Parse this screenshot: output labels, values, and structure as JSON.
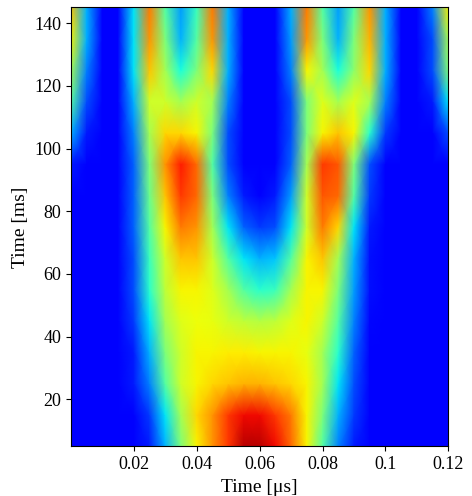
{
  "chart_data": {
    "type": "heatmap",
    "xlabel": "Time [μs]",
    "ylabel": "Time [ms]",
    "x": [
      0,
      0.005,
      0.01,
      0.015,
      0.02,
      0.025,
      0.03,
      0.035,
      0.04,
      0.045,
      0.05,
      0.055,
      0.06,
      0.065,
      0.07,
      0.075,
      0.08,
      0.085,
      0.09,
      0.095,
      0.1,
      0.105,
      0.11,
      0.115,
      0.12
    ],
    "y": [
      5,
      15,
      25,
      35,
      45,
      55,
      65,
      75,
      85,
      95,
      105,
      115,
      125,
      135,
      145
    ],
    "xlim": [
      0,
      0.12
    ],
    "ylim": [
      5,
      145
    ],
    "xticks": [
      0.02,
      0.04,
      0.06,
      0.08,
      0.1,
      0.12
    ],
    "yticks": [
      20,
      40,
      60,
      80,
      100,
      120,
      140
    ],
    "zlim": [
      0,
      1
    ],
    "cells": [
      [
        0.12,
        0.12,
        0.12,
        0.12,
        0.12,
        0.15,
        0.3,
        0.5,
        0.65,
        0.75,
        0.85,
        0.95,
        0.95,
        0.9,
        0.8,
        0.65,
        0.45,
        0.25,
        0.15,
        0.12,
        0.12,
        0.12,
        0.12,
        0.12,
        0.12
      ],
      [
        0.12,
        0.12,
        0.12,
        0.12,
        0.12,
        0.18,
        0.35,
        0.55,
        0.68,
        0.75,
        0.85,
        0.9,
        0.9,
        0.85,
        0.78,
        0.65,
        0.5,
        0.3,
        0.18,
        0.12,
        0.12,
        0.12,
        0.12,
        0.12,
        0.12
      ],
      [
        0.12,
        0.12,
        0.12,
        0.12,
        0.15,
        0.25,
        0.45,
        0.6,
        0.65,
        0.68,
        0.7,
        0.72,
        0.72,
        0.7,
        0.68,
        0.65,
        0.55,
        0.35,
        0.2,
        0.12,
        0.12,
        0.12,
        0.12,
        0.12,
        0.12
      ],
      [
        0.12,
        0.12,
        0.12,
        0.12,
        0.15,
        0.3,
        0.5,
        0.6,
        0.65,
        0.65,
        0.66,
        0.66,
        0.65,
        0.65,
        0.65,
        0.63,
        0.55,
        0.4,
        0.22,
        0.12,
        0.12,
        0.12,
        0.12,
        0.12,
        0.12
      ],
      [
        0.12,
        0.12,
        0.12,
        0.12,
        0.18,
        0.35,
        0.55,
        0.62,
        0.64,
        0.63,
        0.6,
        0.58,
        0.57,
        0.58,
        0.62,
        0.65,
        0.6,
        0.45,
        0.25,
        0.13,
        0.12,
        0.12,
        0.12,
        0.12,
        0.12
      ],
      [
        0.12,
        0.12,
        0.12,
        0.12,
        0.2,
        0.4,
        0.58,
        0.65,
        0.65,
        0.62,
        0.55,
        0.45,
        0.4,
        0.42,
        0.55,
        0.65,
        0.65,
        0.5,
        0.28,
        0.14,
        0.12,
        0.12,
        0.12,
        0.12,
        0.12
      ],
      [
        0.12,
        0.12,
        0.12,
        0.12,
        0.2,
        0.42,
        0.6,
        0.7,
        0.7,
        0.6,
        0.45,
        0.35,
        0.3,
        0.32,
        0.45,
        0.65,
        0.7,
        0.55,
        0.3,
        0.14,
        0.12,
        0.12,
        0.12,
        0.12,
        0.12
      ],
      [
        0.12,
        0.12,
        0.12,
        0.12,
        0.22,
        0.45,
        0.65,
        0.78,
        0.75,
        0.55,
        0.35,
        0.22,
        0.18,
        0.2,
        0.35,
        0.6,
        0.78,
        0.68,
        0.35,
        0.15,
        0.12,
        0.12,
        0.12,
        0.12,
        0.12
      ],
      [
        0.12,
        0.12,
        0.12,
        0.12,
        0.22,
        0.48,
        0.7,
        0.85,
        0.8,
        0.5,
        0.25,
        0.15,
        0.12,
        0.15,
        0.28,
        0.6,
        0.82,
        0.8,
        0.45,
        0.18,
        0.12,
        0.12,
        0.12,
        0.12,
        0.12
      ],
      [
        0.15,
        0.12,
        0.12,
        0.12,
        0.22,
        0.5,
        0.75,
        0.88,
        0.8,
        0.45,
        0.2,
        0.12,
        0.12,
        0.12,
        0.22,
        0.55,
        0.85,
        0.82,
        0.5,
        0.2,
        0.12,
        0.12,
        0.12,
        0.12,
        0.12
      ],
      [
        0.3,
        0.15,
        0.12,
        0.12,
        0.25,
        0.55,
        0.68,
        0.68,
        0.65,
        0.5,
        0.2,
        0.12,
        0.12,
        0.12,
        0.2,
        0.5,
        0.65,
        0.7,
        0.65,
        0.4,
        0.18,
        0.12,
        0.12,
        0.12,
        0.2
      ],
      [
        0.45,
        0.2,
        0.12,
        0.12,
        0.3,
        0.6,
        0.6,
        0.55,
        0.6,
        0.55,
        0.25,
        0.12,
        0.12,
        0.12,
        0.2,
        0.5,
        0.62,
        0.55,
        0.62,
        0.55,
        0.25,
        0.12,
        0.12,
        0.15,
        0.35
      ],
      [
        0.55,
        0.25,
        0.12,
        0.12,
        0.35,
        0.7,
        0.55,
        0.38,
        0.5,
        0.68,
        0.3,
        0.12,
        0.12,
        0.12,
        0.25,
        0.65,
        0.55,
        0.38,
        0.52,
        0.68,
        0.3,
        0.12,
        0.12,
        0.2,
        0.5
      ],
      [
        0.65,
        0.3,
        0.12,
        0.12,
        0.35,
        0.75,
        0.5,
        0.3,
        0.45,
        0.75,
        0.3,
        0.12,
        0.12,
        0.12,
        0.28,
        0.75,
        0.5,
        0.3,
        0.5,
        0.72,
        0.3,
        0.12,
        0.12,
        0.2,
        0.55
      ],
      [
        0.7,
        0.3,
        0.12,
        0.12,
        0.35,
        0.78,
        0.45,
        0.28,
        0.42,
        0.78,
        0.3,
        0.12,
        0.12,
        0.12,
        0.3,
        0.78,
        0.45,
        0.28,
        0.45,
        0.75,
        0.3,
        0.12,
        0.12,
        0.25,
        0.65
      ]
    ]
  }
}
